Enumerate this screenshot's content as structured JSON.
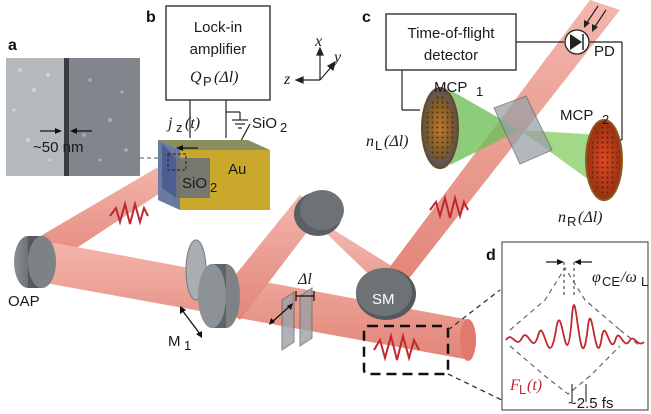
{
  "panels": {
    "a": "a",
    "b": "b",
    "c": "c",
    "d": "d"
  },
  "panel_a": {
    "scale_label": "~50 nm"
  },
  "panel_b": {
    "box_line1": "Lock-in",
    "box_line2": "amplifier",
    "box_line3": "Q",
    "box_line3_sub": "P",
    "box_line3_arg": "(Δl)",
    "current_label": "j",
    "current_sub": "z",
    "current_arg": "(t)",
    "sio2_top": "SiO",
    "sio2_top_sub": "2",
    "sio2_sample": "SiO",
    "sio2_sample_sub": "2",
    "au_label": "Au"
  },
  "axes": {
    "x": "x",
    "y": "y",
    "z": "z"
  },
  "panel_c": {
    "detector_line1": "Time-of-flight",
    "detector_line2": "detector",
    "pd_label": "PD",
    "mcp1": "MCP",
    "mcp1_sub": "1",
    "mcp2": "MCP",
    "mcp2_sub": "2",
    "nl": "n",
    "nl_sub": "L",
    "nl_arg": "(Δl)",
    "nr": "n",
    "nr_sub": "R",
    "nr_arg": "(Δl)"
  },
  "optics": {
    "oap": "OAP",
    "m1": "M",
    "m1_sub": "1",
    "sm": "SM",
    "delta_l": "Δl"
  },
  "panel_d": {
    "phase": "φ",
    "phase_sub": "CE",
    "phase_div": "/ω",
    "phase_div_sub": "L",
    "field": "F",
    "field_sub": "L",
    "field_arg": "(t)",
    "duration": "~2.5 fs"
  },
  "colors": {
    "beam": "#e8857a",
    "beam_edge": "#c9685c",
    "optic": "#6d7277",
    "gold": "#c9a82c",
    "pulse": "#c0282f",
    "green": "#6fbf5a",
    "mcp_face": "#b84a1e"
  }
}
